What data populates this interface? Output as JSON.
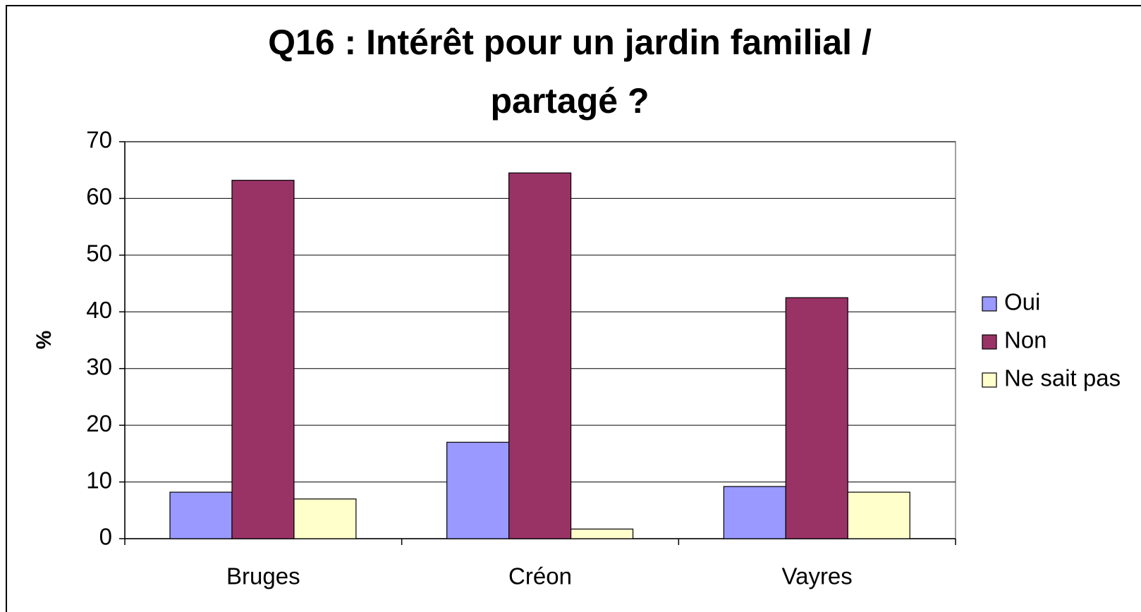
{
  "chart_data": {
    "type": "bar",
    "title": [
      "Q16 : Intérêt pour un jardin familial /",
      "partagé ?"
    ],
    "y_label": "%",
    "categories": [
      "Bruges",
      "Créon",
      "Vayres"
    ],
    "series": [
      {
        "name": "Oui",
        "color": "#9999ff",
        "values": [
          8.2,
          17,
          9.2
        ]
      },
      {
        "name": "Non",
        "color": "#993366",
        "values": [
          63.2,
          64.5,
          42.5
        ]
      },
      {
        "name": "Ne sait pas",
        "color": "#ffffcc",
        "values": [
          7,
          1.7,
          8.2
        ]
      }
    ],
    "ylim": [
      0,
      70
    ],
    "yticks": [
      0,
      10,
      20,
      30,
      40,
      50,
      60,
      70
    ],
    "grid": true,
    "legend": "right"
  }
}
